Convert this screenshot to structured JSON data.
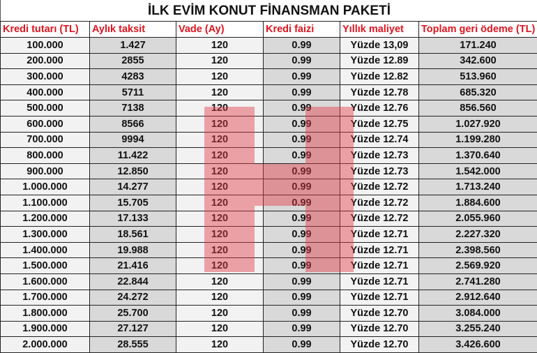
{
  "title": "İLK EVİM KONUT FİNANSMAN PAKETİ",
  "columns": [
    "Kredi tutarı (TL)",
    "Aylık taksit",
    "Vade (Ay)",
    "Kredi faizi",
    "Yıllık maliyet",
    "Toplam geri ödeme (TL)"
  ],
  "rows": [
    [
      "100.000",
      "1.427",
      "120",
      "0.99",
      "Yüzde 13,09",
      "171.240"
    ],
    [
      "200.000",
      "2855",
      "120",
      "0.99",
      "Yüzde 12.89",
      "342.600"
    ],
    [
      "300.000",
      "4283",
      "120",
      "0.99",
      "Yüzde 12.82",
      "513.960"
    ],
    [
      "400.000",
      "5711",
      "120",
      "0.99",
      "Yüzde 12.78",
      "685.320"
    ],
    [
      "500.000",
      "7138",
      "120",
      "0.99",
      "Yüzde 12.76",
      "856.560"
    ],
    [
      "600.000",
      "8566",
      "120",
      "0.99",
      "Yüzde 12.75",
      "1.027.920"
    ],
    [
      "700.000",
      "9994",
      "120",
      "0.99",
      "Yüzde 12.74",
      "1.199.280"
    ],
    [
      "800.000",
      "11.422",
      "120",
      "0.99",
      "Yüzde 12.73",
      "1.370.640"
    ],
    [
      "900.000",
      "12.850",
      "120",
      "0.99",
      "Yüzde 12.73",
      "1.542.000"
    ],
    [
      "1.000.000",
      "14.277",
      "120",
      "0.99",
      "Yüzde 12.72",
      "1.713.240"
    ],
    [
      "1.100.000",
      "15.705",
      "120",
      "0.99",
      "Yüzde 12.72",
      "1.884.600"
    ],
    [
      "1.200.000",
      "17.133",
      "120",
      "0.99",
      "Yüzde 12.72",
      "2.055.960"
    ],
    [
      "1.300.000",
      "18.561",
      "120",
      "0.99",
      "Yüzde 12.71",
      "2.227.320"
    ],
    [
      "1.400.000",
      "19.988",
      "120",
      "0.99",
      "Yüzde 12.71",
      "2.398.560"
    ],
    [
      "1.500.000",
      "21.416",
      "120",
      "0.99",
      "Yüzde 12.71",
      "2.569.920"
    ],
    [
      "1.600.000",
      "22.844",
      "120",
      "0.99",
      "Yüzde 12.71",
      "2.741.280"
    ],
    [
      "1.700.000",
      "24.272",
      "120",
      "0.99",
      "Yüzde 12.71",
      "2.912.640"
    ],
    [
      "1.800.000",
      "25.700",
      "120",
      "0.99",
      "Yüzde 12.70",
      "3.084.000"
    ],
    [
      "1.900.000",
      "27.127",
      "120",
      "0.99",
      "Yüzde 12.70",
      "3.255.240"
    ],
    [
      "2.000.000",
      "28.555",
      "120",
      "0.99",
      "Yüzde 12.70",
      "3.426.600"
    ]
  ],
  "colors": {
    "header_text": "#e0141e",
    "light_cell": "#f2f2f2",
    "dark_cell": "#d9d9d9",
    "watermark": "#e13c46"
  }
}
